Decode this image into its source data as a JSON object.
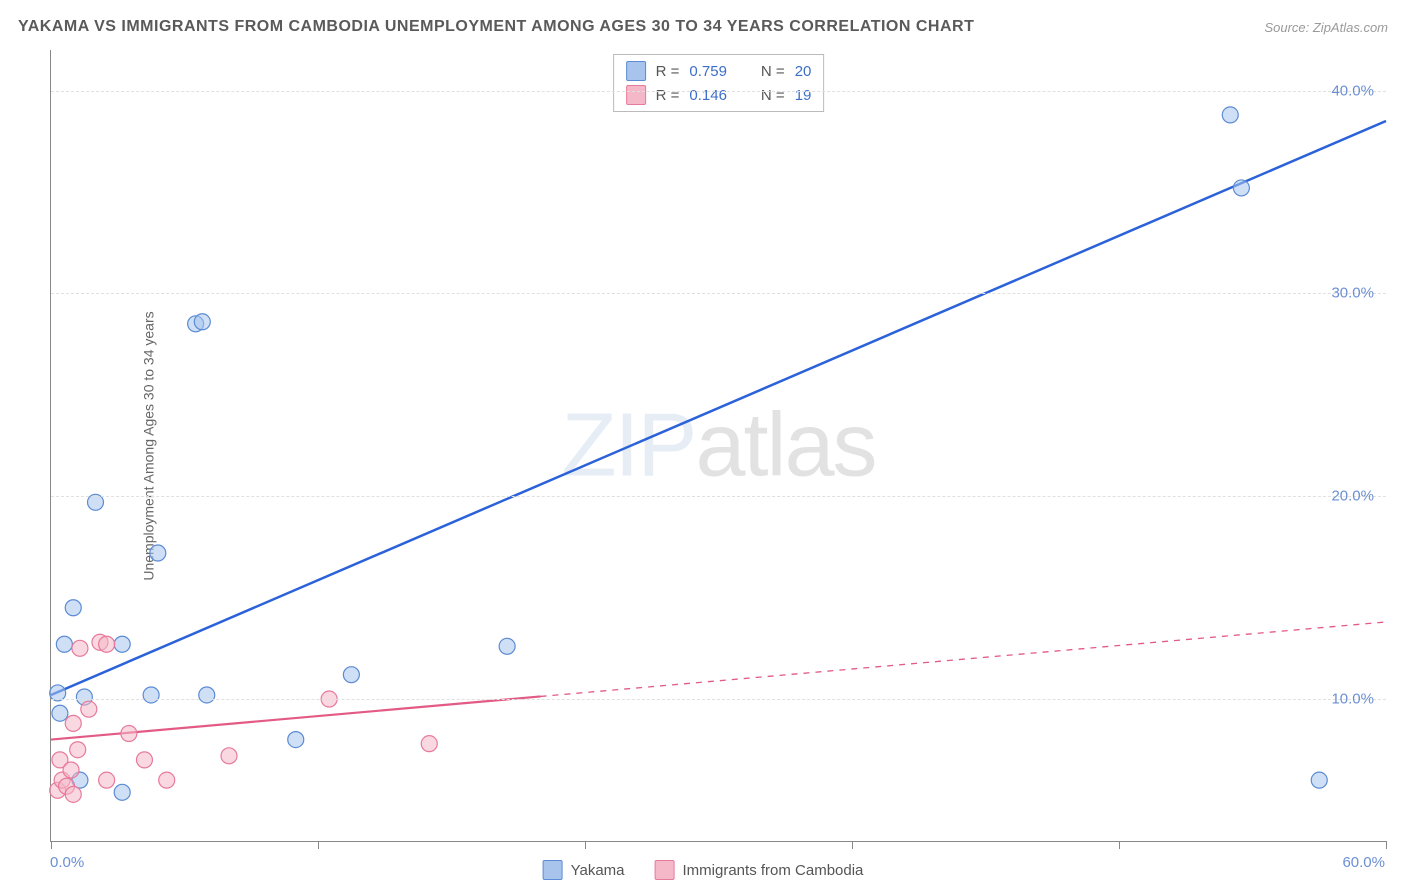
{
  "header": {
    "title": "YAKAMA VS IMMIGRANTS FROM CAMBODIA UNEMPLOYMENT AMONG AGES 30 TO 34 YEARS CORRELATION CHART",
    "source": "Source: ZipAtlas.com"
  },
  "chart": {
    "type": "scatter",
    "ylabel": "Unemployment Among Ages 30 to 34 years",
    "watermark_zip": "ZIP",
    "watermark_atlas": "atlas",
    "xlim": [
      0,
      60
    ],
    "ylim": [
      3,
      42
    ],
    "x_ticks": [
      0,
      12,
      24,
      36,
      48,
      60
    ],
    "x_tick_labels": {
      "0": "0.0%",
      "60": "60.0%"
    },
    "y_ticks": [
      10,
      20,
      30,
      40
    ],
    "y_tick_labels": {
      "10": "10.0%",
      "20": "20.0%",
      "30": "30.0%",
      "40": "40.0%"
    },
    "grid_color": "#e0e0e0",
    "axis_color": "#888888",
    "background_color": "#ffffff",
    "marker_radius": 8,
    "marker_opacity": 0.55,
    "series": [
      {
        "id": "yakama",
        "label": "Yakama",
        "color_fill": "#a8c4ec",
        "color_stroke": "#5b8bd4",
        "line_color": "#2b62d9",
        "line_width": 2.5,
        "R": "0.759",
        "N": "20",
        "points": [
          [
            0.3,
            10.3
          ],
          [
            0.4,
            9.3
          ],
          [
            0.6,
            12.7
          ],
          [
            1.0,
            14.5
          ],
          [
            1.3,
            6.0
          ],
          [
            1.5,
            10.1
          ],
          [
            2.0,
            19.7
          ],
          [
            3.2,
            12.7
          ],
          [
            3.2,
            5.4
          ],
          [
            4.5,
            10.2
          ],
          [
            4.8,
            17.2
          ],
          [
            6.5,
            28.5
          ],
          [
            6.8,
            28.6
          ],
          [
            7.0,
            10.2
          ],
          [
            11.0,
            8.0
          ],
          [
            13.5,
            11.2
          ],
          [
            20.5,
            12.6
          ],
          [
            53.0,
            38.8
          ],
          [
            53.5,
            35.2
          ],
          [
            57.0,
            6.0
          ]
        ],
        "trend": {
          "x1": 0,
          "y1": 10.2,
          "x2": 60,
          "y2": 38.5,
          "solid_until_x": 60
        }
      },
      {
        "id": "cambodia",
        "label": "Immigrants from Cambodia",
        "color_fill": "#f4b8c8",
        "color_stroke": "#e77a9a",
        "line_color": "#e35a85",
        "line_width": 2.2,
        "R": "0.146",
        "N": "19",
        "points": [
          [
            0.3,
            5.5
          ],
          [
            0.4,
            7.0
          ],
          [
            0.5,
            6.0
          ],
          [
            0.7,
            5.7
          ],
          [
            0.9,
            6.5
          ],
          [
            1.0,
            8.8
          ],
          [
            1.0,
            5.3
          ],
          [
            1.2,
            7.5
          ],
          [
            1.3,
            12.5
          ],
          [
            1.7,
            9.5
          ],
          [
            2.2,
            12.8
          ],
          [
            2.5,
            12.7
          ],
          [
            2.5,
            6.0
          ],
          [
            3.5,
            8.3
          ],
          [
            4.2,
            7.0
          ],
          [
            5.2,
            6.0
          ],
          [
            8.0,
            7.2
          ],
          [
            12.5,
            10.0
          ],
          [
            17.0,
            7.8
          ]
        ],
        "trend": {
          "x1": 0,
          "y1": 8.0,
          "x2": 60,
          "y2": 13.8,
          "solid_until_x": 22
        }
      }
    ]
  },
  "legend_top": {
    "r_label": "R =",
    "n_label": "N ="
  }
}
